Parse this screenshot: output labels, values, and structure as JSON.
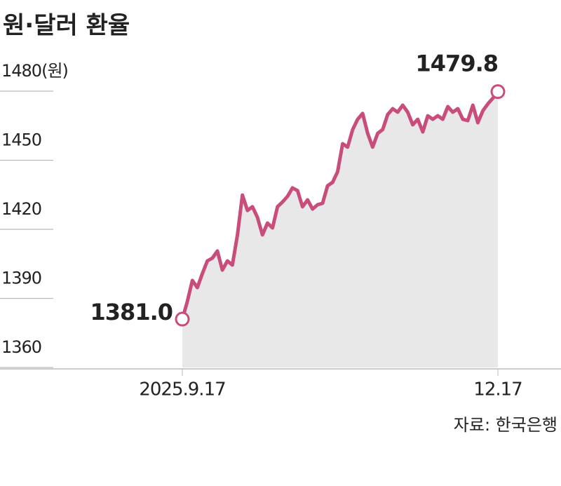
{
  "chart_data": {
    "type": "line",
    "title": "원·달러 환율",
    "source": "자료: 한국은행",
    "categories": [
      "2025.9.17",
      null,
      null,
      null,
      null,
      null,
      null,
      null,
      null,
      null,
      null,
      null,
      null,
      null,
      null,
      null,
      null,
      null,
      null,
      null,
      null,
      null,
      null,
      null,
      null,
      null,
      null,
      null,
      null,
      null,
      null,
      null,
      null,
      null,
      null,
      null,
      null,
      null,
      null,
      null,
      null,
      null,
      null,
      null,
      null,
      null,
      null,
      null,
      null,
      null,
      null,
      null,
      null,
      null,
      null,
      null,
      null,
      null,
      null,
      null,
      null,
      null,
      null,
      "12.17"
    ],
    "series": [
      {
        "color": "#c94d7b",
        "values": [
          1381.0,
          1388.6,
          1397.8,
          1394.7,
          1400.8,
          1406.3,
          1407.5,
          1410.6,
          1402.3,
          1406.3,
          1404.5,
          1417.6,
          1434.9,
          1428.2,
          1429.8,
          1425.2,
          1417.6,
          1422.7,
          1420.6,
          1429.8,
          1431.9,
          1434.3,
          1438.0,
          1436.8,
          1429.8,
          1432.8,
          1428.8,
          1430.7,
          1431.3,
          1438.9,
          1440.4,
          1445.0,
          1457.2,
          1455.7,
          1463.3,
          1467.8,
          1470.3,
          1461.7,
          1455.7,
          1461.7,
          1463.3,
          1469.9,
          1472.4,
          1470.9,
          1473.9,
          1470.9,
          1465.4,
          1467.8,
          1462.3,
          1469.3,
          1467.8,
          1469.3,
          1467.8,
          1473.3,
          1470.9,
          1472.4,
          1467.8,
          1467.2,
          1473.9,
          1466.3,
          1471.5,
          1474.5,
          1477.0,
          1479.8
        ],
        "value_labels": [
          "1381.0",
          null,
          null,
          null,
          null,
          null,
          null,
          null,
          null,
          null,
          null,
          null,
          null,
          null,
          null,
          null,
          null,
          null,
          null,
          null,
          null,
          null,
          null,
          null,
          null,
          null,
          null,
          null,
          null,
          null,
          null,
          null,
          null,
          null,
          null,
          null,
          null,
          null,
          null,
          null,
          null,
          null,
          null,
          null,
          null,
          null,
          null,
          null,
          null,
          null,
          null,
          null,
          null,
          null,
          null,
          null,
          null,
          null,
          null,
          null,
          null,
          null,
          null,
          "1479.8"
        ]
      }
    ],
    "area_color": "#e8e8e8",
    "ylim": [
      1360,
      1480
    ],
    "yticks": [
      {
        "value": 1480,
        "label": "1480(원)"
      },
      1450,
      1420,
      1390,
      1360
    ],
    "grid": true
  }
}
